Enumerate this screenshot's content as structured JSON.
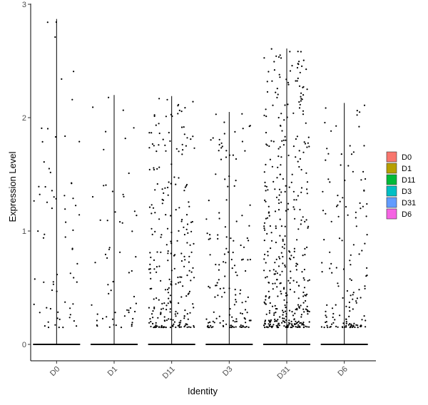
{
  "chart_data": {
    "type": "violin",
    "xlabel": "Identity",
    "ylabel": "Expression Level",
    "categories": [
      "D0",
      "D1",
      "D11",
      "D3",
      "D31",
      "D6"
    ],
    "ylim": [
      -0.15,
      3.0
    ],
    "yticks": [
      0,
      1,
      2,
      3
    ],
    "fills": [
      "#F8766D",
      "#B79F00",
      "#00BA38",
      "#00BFC4",
      "#619CFF",
      "#F564E3"
    ],
    "groups": [
      {
        "name": "D0",
        "max": 2.87,
        "expressing_cells": 70,
        "zero_band": true
      },
      {
        "name": "D1",
        "max": 2.2,
        "expressing_cells": 60,
        "zero_band": true
      },
      {
        "name": "D11",
        "max": 2.19,
        "expressing_cells": 260,
        "zero_band": true
      },
      {
        "name": "D3",
        "max": 2.05,
        "expressing_cells": 150,
        "zero_band": true
      },
      {
        "name": "D31",
        "max": 2.61,
        "expressing_cells": 420,
        "zero_band": true
      },
      {
        "name": "D6",
        "max": 2.13,
        "expressing_cells": 150,
        "zero_band": true
      }
    ],
    "legend": {
      "position": "right",
      "entries": [
        "D0",
        "D1",
        "D11",
        "D3",
        "D31",
        "D6"
      ]
    },
    "grid": false
  }
}
